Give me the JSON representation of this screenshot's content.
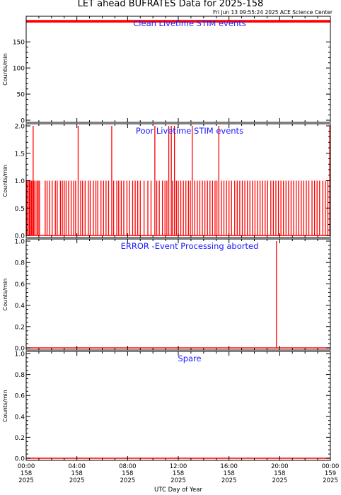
{
  "title": "LET ahead BUFRATES Data for 2025-158",
  "timestamp": "Fri Jun 13 09:55:24 2025 ACE Science Center",
  "xlabel": "UTC Day of Year",
  "x_ticks": [
    {
      "time": "00:00",
      "doy": "158",
      "year": "2025"
    },
    {
      "time": "04:00",
      "doy": "158",
      "year": "2025"
    },
    {
      "time": "08:00",
      "doy": "158",
      "year": "2025"
    },
    {
      "time": "12:00",
      "doy": "158",
      "year": "2025"
    },
    {
      "time": "16:00",
      "doy": "158",
      "year": "2025"
    },
    {
      "time": "20:00",
      "doy": "158",
      "year": "2025"
    },
    {
      "time": "00:00",
      "doy": "159",
      "year": "2025"
    }
  ],
  "colors": {
    "data": "#ff0000",
    "panel_title": "#1a1aff",
    "axes": "#000000"
  },
  "chart_data": [
    {
      "type": "line",
      "title": "Clean Livetime STIM events",
      "ylabel": "Counts/min",
      "xlim_hours": [
        0,
        24
      ],
      "ylim": [
        0,
        195
      ],
      "yticks": [
        0,
        50,
        100,
        150
      ],
      "series": [
        {
          "kind": "band",
          "range": [
            187,
            192
          ],
          "points": [
            [
              0,
              190
            ],
            [
              0.5,
              188
            ],
            [
              1,
              191
            ],
            [
              1.5,
              189
            ],
            [
              2,
              190
            ],
            [
              2.5,
              191
            ],
            [
              3,
              188
            ],
            [
              3.5,
              190
            ],
            [
              4,
              191
            ],
            [
              4.5,
              189
            ],
            [
              5,
              190
            ],
            [
              5.5,
              188
            ],
            [
              6,
              191
            ],
            [
              6.5,
              190
            ],
            [
              7,
              189
            ],
            [
              7.5,
              191
            ],
            [
              8,
              190
            ],
            [
              8.5,
              188
            ],
            [
              9,
              190
            ],
            [
              9.5,
              191
            ],
            [
              10,
              189
            ],
            [
              10.5,
              190
            ],
            [
              11,
              191
            ],
            [
              11.5,
              188
            ],
            [
              12,
              190
            ],
            [
              12.5,
              189
            ],
            [
              13,
              191
            ],
            [
              13.5,
              190
            ],
            [
              14,
              188
            ],
            [
              14.5,
              191
            ],
            [
              15,
              190
            ],
            [
              15.5,
              189
            ],
            [
              16,
              190
            ],
            [
              16.5,
              191
            ],
            [
              17,
              188
            ],
            [
              17.5,
              190
            ],
            [
              18,
              189
            ],
            [
              18.5,
              191
            ],
            [
              19,
              190
            ],
            [
              19.5,
              188
            ],
            [
              20,
              190
            ],
            [
              20.5,
              191
            ],
            [
              21,
              189
            ],
            [
              21.5,
              190
            ],
            [
              22,
              191
            ],
            [
              22.5,
              188
            ],
            [
              23,
              190
            ],
            [
              23.5,
              189
            ],
            [
              24,
              190
            ]
          ]
        }
      ]
    },
    {
      "type": "line",
      "title": "Poor Livetime STIM events",
      "ylabel": "Counts/min",
      "xlim_hours": [
        0,
        24
      ],
      "ylim": [
        0,
        2
      ],
      "yticks": [
        0.0,
        0.5,
        1.0,
        1.5,
        2.0
      ],
      "series": [
        {
          "kind": "spikes",
          "spikes_2": [
            0.55,
            4.1,
            6.75,
            10.15,
            11.25,
            11.45,
            11.7,
            13.1,
            15.2,
            23.95
          ],
          "spikes_1": [
            0.05,
            0.15,
            0.25,
            0.3,
            0.4,
            0.45,
            0.6,
            0.7,
            0.85,
            0.95,
            1.05,
            1.5,
            1.65,
            1.85,
            2.05,
            2.3,
            2.45,
            2.7,
            2.85,
            3.0,
            3.15,
            3.35,
            3.55,
            3.75,
            3.9,
            4.3,
            4.45,
            4.65,
            4.9,
            5.05,
            5.3,
            5.5,
            5.65,
            5.9,
            6.1,
            6.3,
            6.5,
            6.9,
            7.15,
            7.3,
            7.5,
            7.7,
            7.95,
            8.15,
            8.4,
            8.6,
            8.8,
            9.0,
            9.3,
            9.6,
            9.85,
            10.3,
            10.5,
            10.75,
            10.95,
            11.1,
            11.55,
            11.85,
            12.0,
            12.2,
            12.4,
            12.6,
            12.8,
            12.95,
            13.3,
            13.5,
            13.7,
            13.9,
            14.1,
            14.3,
            14.5,
            14.7,
            14.9,
            15.05,
            15.4,
            15.6,
            15.8,
            16.0,
            16.2,
            16.45,
            16.65,
            16.85,
            17.05,
            17.25,
            17.45,
            17.65,
            17.85,
            18.05,
            18.25,
            18.45,
            18.65,
            18.85,
            19.05,
            19.3,
            19.5,
            19.7,
            19.9,
            20.1,
            20.3,
            20.5,
            20.7,
            20.9,
            21.1,
            21.3,
            21.5,
            21.7,
            21.9,
            22.1,
            22.3,
            22.55,
            22.75,
            22.95,
            23.15,
            23.4,
            23.6,
            23.8
          ]
        }
      ]
    },
    {
      "type": "line",
      "title": "ERROR -Event Processing aborted",
      "ylabel": "Counts/min",
      "xlim_hours": [
        0,
        24
      ],
      "ylim": [
        0,
        1
      ],
      "yticks": [
        0.0,
        0.2,
        0.4,
        0.6,
        0.8,
        1.0
      ],
      "series": [
        {
          "kind": "spikes",
          "spikes_1": [
            19.75
          ]
        }
      ]
    },
    {
      "type": "line",
      "title": "Spare",
      "ylabel": "Counts/min",
      "xlim_hours": [
        0,
        24
      ],
      "ylim": [
        0,
        1
      ],
      "yticks": [
        0.0,
        0.2,
        0.4,
        0.6,
        0.8,
        1.0
      ],
      "series": [
        {
          "kind": "flat",
          "value": 0
        }
      ]
    }
  ]
}
